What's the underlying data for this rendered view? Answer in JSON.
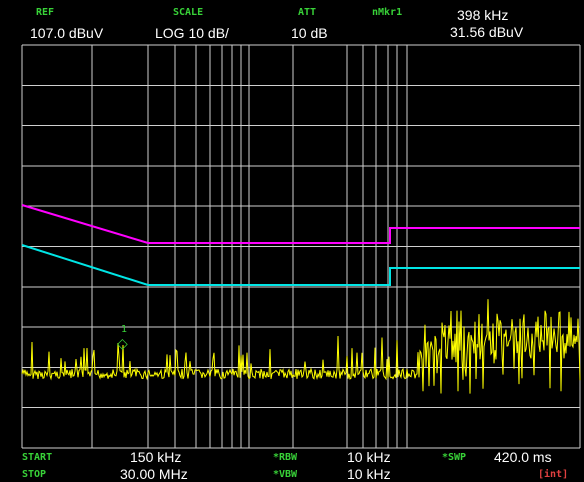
{
  "header": {
    "ref_label": "REF",
    "ref_value": "107.0 dBuV",
    "scale_label": "SCALE",
    "scale_value": "LOG 10 dB/",
    "att_label": "ATT",
    "att_value": "10 dB",
    "marker_label": "nMkr1",
    "marker_freq": "398 kHz",
    "marker_level": "31.56 dBuV"
  },
  "footer": {
    "start_label": "START",
    "start_value": "150 kHz",
    "stop_label": "STOP",
    "stop_value": "30.00 MHz",
    "rbw_label": "*RBW",
    "rbw_value": "10 kHz",
    "vbw_label": "*VBW",
    "vbw_value": "10 kHz",
    "swp_label": "*SWP",
    "swp_value": "420.0 ms",
    "int_label": "[int]"
  },
  "marker": {
    "number": "1",
    "symbol": "◇"
  },
  "colors": {
    "background": "#000000",
    "grid": "#cfcfcf",
    "label_green": "#38d238",
    "trace_yellow": "#ffff00",
    "limit_magenta": "#ff00ff",
    "limit_cyan": "#00e5e5",
    "marker_green": "#38d238",
    "int_red": "#e04040"
  }
}
